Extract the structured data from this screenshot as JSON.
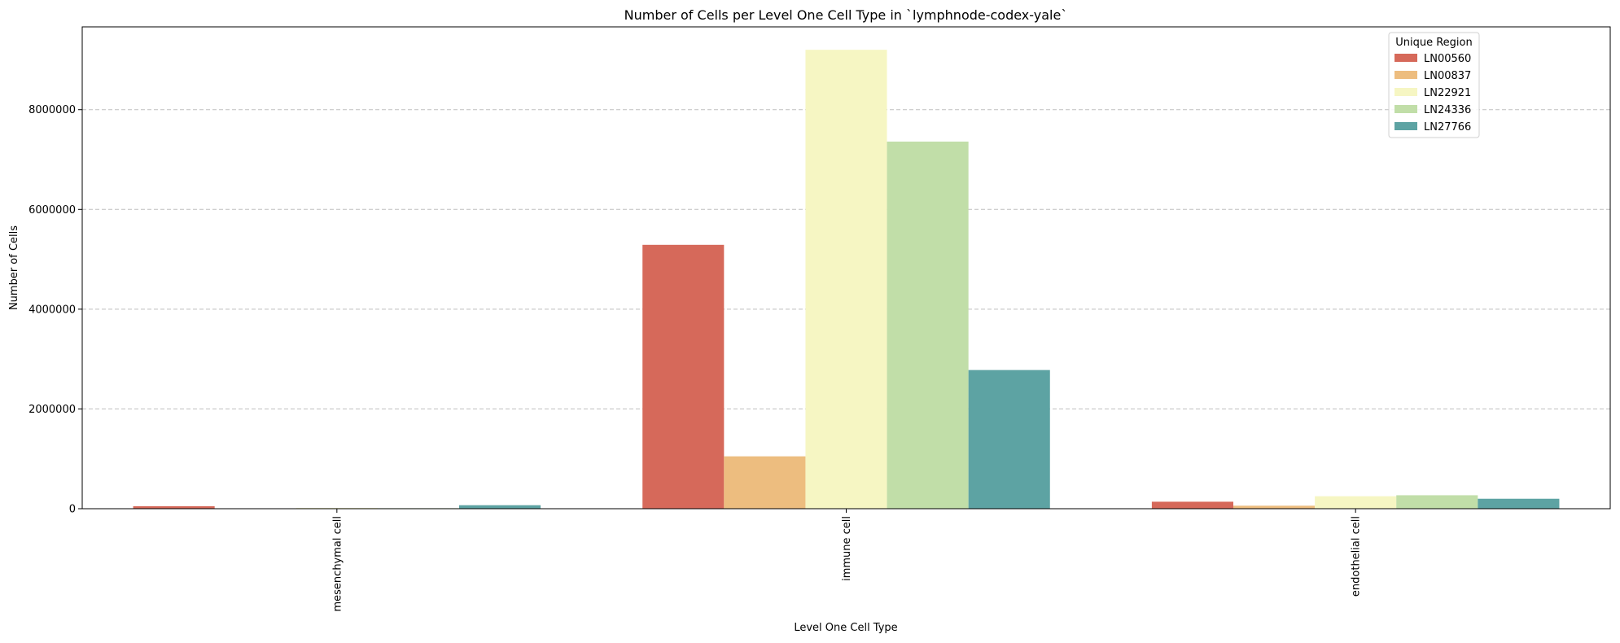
{
  "chart_data": {
    "type": "bar",
    "title": "Number of Cells per Level One Cell Type in `lymphnode-codex-yale`",
    "xlabel": "Level One Cell Type",
    "ylabel": "Number of Cells",
    "categories": [
      "mesenchymal cell",
      "immune cell",
      "endothelial cell"
    ],
    "series": [
      {
        "name": "LN00560",
        "color": "#d6695a",
        "values": [
          50000,
          5290000,
          140000
        ]
      },
      {
        "name": "LN00837",
        "color": "#edbd7f",
        "values": [
          5000,
          1050000,
          60000
        ]
      },
      {
        "name": "LN22921",
        "color": "#f6f6c3",
        "values": [
          15000,
          9200000,
          250000
        ]
      },
      {
        "name": "LN24336",
        "color": "#c1dea8",
        "values": [
          10000,
          7360000,
          270000
        ]
      },
      {
        "name": "LN27766",
        "color": "#5da3a3",
        "values": [
          70000,
          2780000,
          200000
        ]
      }
    ],
    "ylim": [
      0,
      9660000
    ],
    "yticks": [
      0,
      2000000,
      4000000,
      6000000,
      8000000
    ],
    "ytick_labels": [
      "0",
      "2000000",
      "4000000",
      "6000000",
      "8000000"
    ],
    "grid": "y-axis, dashed",
    "legend": {
      "title": "Unique Region",
      "placement": "top-right"
    }
  }
}
